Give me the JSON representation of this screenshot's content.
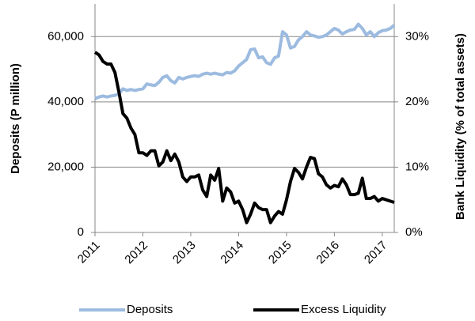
{
  "chart_data": {
    "type": "line",
    "categories": [
      "2011",
      null,
      null,
      null,
      null,
      null,
      null,
      null,
      null,
      null,
      null,
      null,
      "2012",
      null,
      null,
      null,
      null,
      null,
      null,
      null,
      null,
      null,
      null,
      null,
      "2013",
      null,
      null,
      null,
      null,
      null,
      null,
      null,
      null,
      null,
      null,
      null,
      "2014",
      null,
      null,
      null,
      null,
      null,
      null,
      null,
      null,
      null,
      null,
      null,
      "2015",
      null,
      null,
      null,
      null,
      null,
      null,
      null,
      null,
      null,
      null,
      null,
      "2016",
      null,
      null,
      null,
      null,
      null,
      null,
      null,
      null,
      null,
      null,
      null,
      "2017",
      null,
      null,
      null
    ],
    "ylabel": "Deposits (P million)",
    "y2label": "Bank Liquidity (% of total assets)",
    "ylim": [
      0,
      70000
    ],
    "yticks": [
      0,
      {
        "value": 20000,
        "label": "20,000"
      },
      {
        "value": 40000,
        "label": "40,000"
      },
      {
        "value": 60000,
        "label": "60,000"
      }
    ],
    "y2lim": [
      0,
      35
    ],
    "y2ticks": [
      {
        "value": 0,
        "label": "0%"
      },
      {
        "value": 10,
        "label": "10%"
      },
      {
        "value": 20,
        "label": "20%"
      },
      {
        "value": 30,
        "label": "30%"
      }
    ],
    "grid": true,
    "legend": "bottom",
    "series": [
      {
        "name": "Deposits",
        "color": "#9dbbe0",
        "values": [
          41000,
          41500,
          41800,
          41500,
          41800,
          42000,
          42500,
          44000,
          43500,
          43800,
          43500,
          43800,
          44000,
          45500,
          45200,
          45000,
          46000,
          47500,
          48000,
          46500,
          45800,
          47500,
          47000,
          47500,
          47800,
          48000,
          47800,
          48500,
          48800,
          48500,
          48800,
          48500,
          48300,
          49000,
          48800,
          49500,
          51000,
          52000,
          53000,
          56000,
          56200,
          53500,
          53800,
          52000,
          51500,
          53500,
          54000,
          61500,
          60500,
          56500,
          57000,
          59000,
          60000,
          61500,
          60500,
          60200,
          59800,
          60000,
          60500,
          61500,
          62500,
          62000,
          60800,
          61500,
          62000,
          62200,
          63800,
          62500,
          60500,
          61500,
          60000,
          61200,
          61800,
          62000,
          62500,
          63500
        ]
      },
      {
        "name": "Excess Liquidity",
        "color": "#000000",
        "axis": "y2",
        "values": [
          27.6,
          27.2,
          26.2,
          25.8,
          25.8,
          24.5,
          21.5,
          18.2,
          17.5,
          16,
          15,
          12.2,
          12.2,
          11.8,
          12.5,
          12.5,
          10.2,
          10.8,
          12.5,
          11,
          12,
          10.8,
          8.5,
          7.8,
          8.5,
          8.5,
          8.8,
          6.5,
          5.5,
          8.8,
          8,
          9.8,
          4.8,
          6.8,
          6.2,
          4.5,
          4.8,
          3.5,
          1.5,
          2.8,
          4.5,
          3.8,
          3.5,
          3.5,
          1.5,
          2.5,
          3.2,
          2.8,
          5,
          7.8,
          9.8,
          9.2,
          8.2,
          10,
          11.5,
          11.3,
          9,
          8.5,
          7.3,
          6.8,
          7.2,
          7,
          8.2,
          7.3,
          5.8,
          5.8,
          6,
          8.3,
          5.2,
          5.2,
          5.5,
          4.8,
          5.2,
          5,
          4.8,
          4.6
        ]
      }
    ]
  }
}
